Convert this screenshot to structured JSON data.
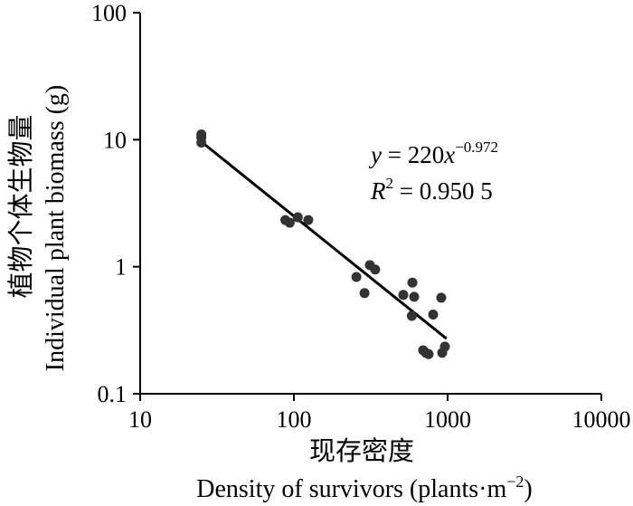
{
  "chart_data": {
    "type": "scatter",
    "x_scale": "log",
    "y_scale": "log",
    "xlim": [
      10,
      10000
    ],
    "ylim": [
      0.1,
      100
    ],
    "x_ticks": [
      "10",
      "100",
      "1000",
      "10000"
    ],
    "y_ticks": [
      "100",
      "10",
      "1",
      "0.1"
    ],
    "xlabel": {
      "cn": "现存密度",
      "en": "Density of survivors (plants·m",
      "en_sup": "−2",
      "en_tail": ")"
    },
    "ylabel": {
      "cn": "植物个体生物量",
      "en": "Individual plant biomass (g)"
    },
    "points": [
      {
        "x": 25,
        "y": 11.0
      },
      {
        "x": 25,
        "y": 10.4
      },
      {
        "x": 25,
        "y": 9.5
      },
      {
        "x": 88,
        "y": 2.33
      },
      {
        "x": 94,
        "y": 2.22
      },
      {
        "x": 106,
        "y": 2.45
      },
      {
        "x": 124,
        "y": 2.33
      },
      {
        "x": 255,
        "y": 0.83
      },
      {
        "x": 288,
        "y": 0.62
      },
      {
        "x": 312,
        "y": 1.03
      },
      {
        "x": 338,
        "y": 0.95
      },
      {
        "x": 515,
        "y": 0.6
      },
      {
        "x": 585,
        "y": 0.41
      },
      {
        "x": 590,
        "y": 0.75
      },
      {
        "x": 606,
        "y": 0.58
      },
      {
        "x": 693,
        "y": 0.22
      },
      {
        "x": 722,
        "y": 0.21
      },
      {
        "x": 752,
        "y": 0.205
      },
      {
        "x": 805,
        "y": 0.42
      },
      {
        "x": 909,
        "y": 0.57
      },
      {
        "x": 922,
        "y": 0.21
      },
      {
        "x": 960,
        "y": 0.235
      }
    ],
    "trendline": {
      "type": "power",
      "coefficient": 220,
      "exponent": -0.972,
      "x_start": 25,
      "x_end": 970
    },
    "equation": {
      "y": "y",
      "equals": " = 220",
      "x": "x",
      "exponent": "−0.972"
    },
    "r_squared": {
      "symbol": "R",
      "sup": "2",
      "value": " = 0.950 5"
    },
    "grid": false,
    "colors": {
      "points": "#333333",
      "line": "#000000"
    }
  }
}
